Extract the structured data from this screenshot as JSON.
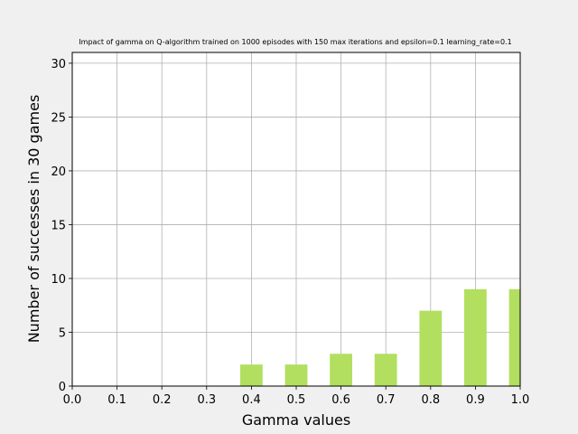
{
  "chart_data": {
    "type": "bar",
    "title": "Impact of gamma on Q-algorithm trained on 1000 episodes with 150 max iterations and epsilon=0.1 learning_rate=0.1",
    "xlabel": "Gamma values",
    "ylabel": "Number of successes in 30 games",
    "x": [
      0.4,
      0.5,
      0.6,
      0.7,
      0.8,
      0.9,
      1.0
    ],
    "values": [
      2,
      2,
      3,
      3,
      7,
      9,
      9
    ],
    "bar_width": 0.05,
    "xlim": [
      0.0,
      1.0
    ],
    "ylim": [
      0,
      31
    ],
    "xticks": [
      0.0,
      0.1,
      0.2,
      0.3,
      0.4,
      0.5,
      0.6,
      0.7,
      0.8,
      0.9,
      1.0
    ],
    "xtick_labels": [
      "0.0",
      "0.1",
      "0.2",
      "0.3",
      "0.4",
      "0.5",
      "0.6",
      "0.7",
      "0.8",
      "0.9",
      "1.0"
    ],
    "yticks": [
      0,
      5,
      10,
      15,
      20,
      25,
      30
    ],
    "ytick_labels": [
      "0",
      "5",
      "10",
      "15",
      "20",
      "25",
      "30"
    ],
    "grid": true,
    "bar_color": "#b2df5f",
    "grid_color": "#b0b0b0",
    "background": "#f0f0f0"
  }
}
